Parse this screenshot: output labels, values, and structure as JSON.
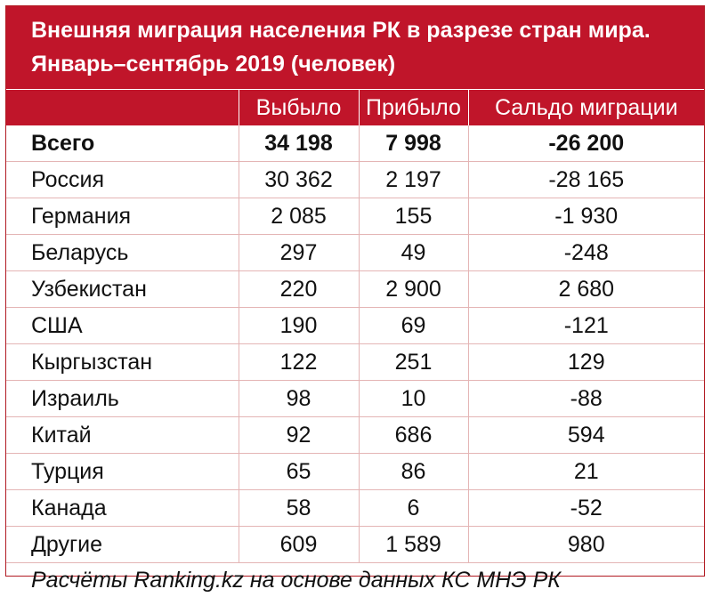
{
  "title": {
    "line1": "Внешняя миграция населения РК в разрезе стран мира.",
    "line2": "Январь–сентябрь 2019 (человек)"
  },
  "table": {
    "headers": [
      "",
      "Выбыло",
      "Прибыло",
      "Сальдо миграции"
    ],
    "rows": [
      {
        "name": "Всего",
        "out": "34 198",
        "in": "7 998",
        "net": "-26 200"
      },
      {
        "name": "Россия",
        "out": "30 362",
        "in": "2 197",
        "net": "-28 165"
      },
      {
        "name": "Германия",
        "out": "2 085",
        "in": "155",
        "net": "-1 930"
      },
      {
        "name": "Беларусь",
        "out": "297",
        "in": "49",
        "net": "-248"
      },
      {
        "name": "Узбекистан",
        "out": "220",
        "in": "2 900",
        "net": "2 680"
      },
      {
        "name": "США",
        "out": "190",
        "in": "69",
        "net": "-121"
      },
      {
        "name": "Кыргызстан",
        "out": "122",
        "in": "251",
        "net": "129"
      },
      {
        "name": "Израиль",
        "out": "98",
        "in": "10",
        "net": "-88"
      },
      {
        "name": "Китай",
        "out": "92",
        "in": "686",
        "net": "594"
      },
      {
        "name": "Турция",
        "out": "65",
        "in": "86",
        "net": "21"
      },
      {
        "name": "Канада",
        "out": "58",
        "in": "6",
        "net": "-52"
      },
      {
        "name": "Другие",
        "out": "609",
        "in": "1 589",
        "net": "980"
      }
    ]
  },
  "footnote": "Расчёты Ranking.kz на основе данных КС МНЭ РК",
  "colors": {
    "header_bg": "#c0152a",
    "header_text": "#ffffff",
    "grid": "#e4b5b5"
  }
}
